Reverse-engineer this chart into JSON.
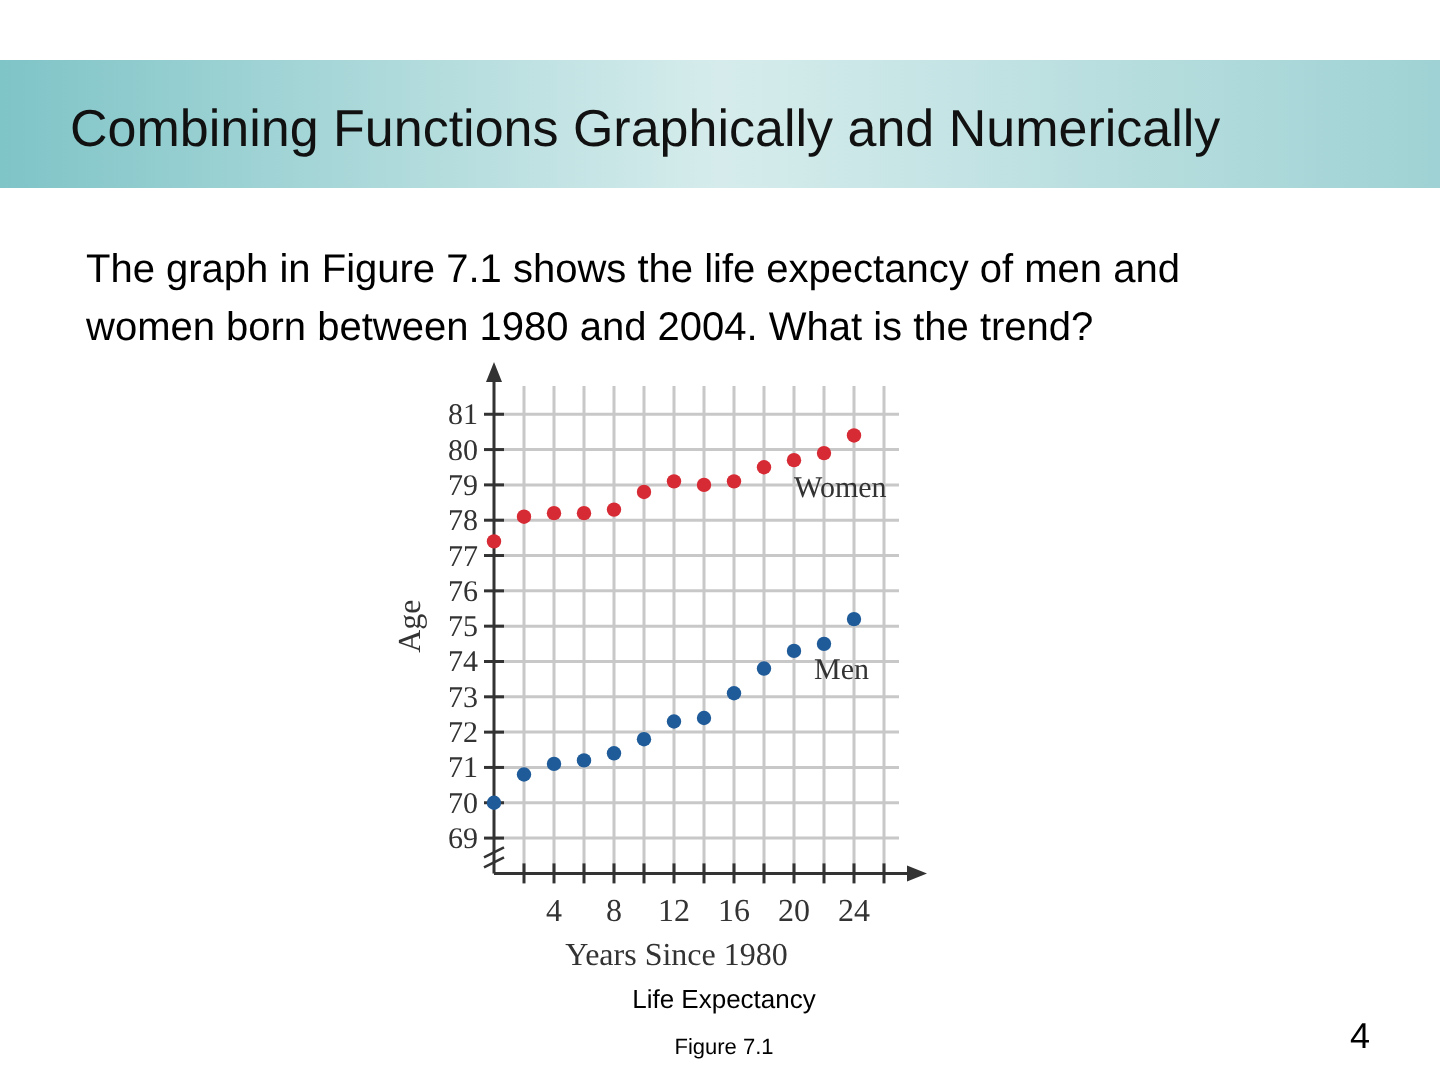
{
  "chart_data": {
    "type": "scatter",
    "title": "Combining Functions Graphically and Numerically",
    "subtitle": "The graph in Figure 7.1 shows the life expectancy of men and women born between 1980 and 2004. What is the trend?",
    "xlabel": "Years Since 1980",
    "ylabel": "Age",
    "x": [
      0,
      2,
      4,
      6,
      8,
      10,
      12,
      14,
      16,
      18,
      20,
      22,
      24
    ],
    "series": [
      {
        "name": "Women",
        "color": "#d62b35",
        "values": [
          77.4,
          78.1,
          78.2,
          78.2,
          78.3,
          78.8,
          79.1,
          79.0,
          79.1,
          79.5,
          79.7,
          79.9,
          80.4
        ]
      },
      {
        "name": "Men",
        "color": "#1f5b99",
        "values": [
          70.0,
          70.8,
          71.1,
          71.2,
          71.4,
          71.8,
          72.3,
          72.4,
          73.1,
          73.8,
          74.3,
          74.5,
          75.2
        ]
      }
    ],
    "xlim": [
      0,
      27
    ],
    "ylim": [
      68,
      81.8
    ],
    "xticks": [
      {
        "value": 2,
        "label": null
      },
      4,
      {
        "value": 6,
        "label": null
      },
      8,
      {
        "value": 10,
        "label": null
      },
      12,
      {
        "value": 14,
        "label": null
      },
      16,
      {
        "value": 18,
        "label": null
      },
      20,
      {
        "value": 22,
        "label": null
      },
      24,
      {
        "value": 26,
        "label": null
      }
    ],
    "yticks": [
      69,
      70,
      71,
      72,
      73,
      74,
      75,
      76,
      77,
      78,
      79,
      80,
      81
    ],
    "grid": true,
    "marker": "circle",
    "annotations": [
      "Life Expectancy",
      "Figure 7.1",
      "4"
    ]
  }
}
